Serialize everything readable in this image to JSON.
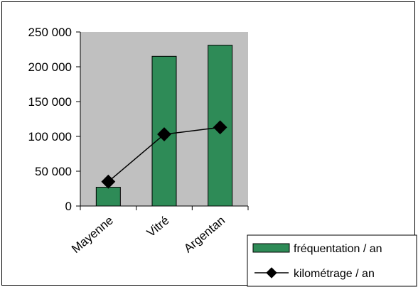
{
  "chart_data": {
    "type": "bar",
    "categories": [
      "Mayenne",
      "Vitré",
      "Argentan"
    ],
    "series": [
      {
        "name": "fréquentation / an",
        "kind": "bar",
        "values": [
          27000,
          215000,
          231000
        ],
        "color": "#2e8b57"
      },
      {
        "name": "kilométrage / an",
        "kind": "line",
        "values": [
          35000,
          103000,
          113000
        ],
        "color": "#000000"
      }
    ],
    "ylim": [
      0,
      250000
    ],
    "yticks": [
      0,
      50000,
      100000,
      150000,
      200000,
      250000
    ],
    "ytick_labels": [
      "0",
      "50 000",
      "100 000",
      "150 000",
      "200 000",
      "250 000"
    ],
    "plot_background": "#c0c0c0",
    "legend": "bottom-right",
    "xlabel": "",
    "ylabel": "",
    "title": ""
  }
}
